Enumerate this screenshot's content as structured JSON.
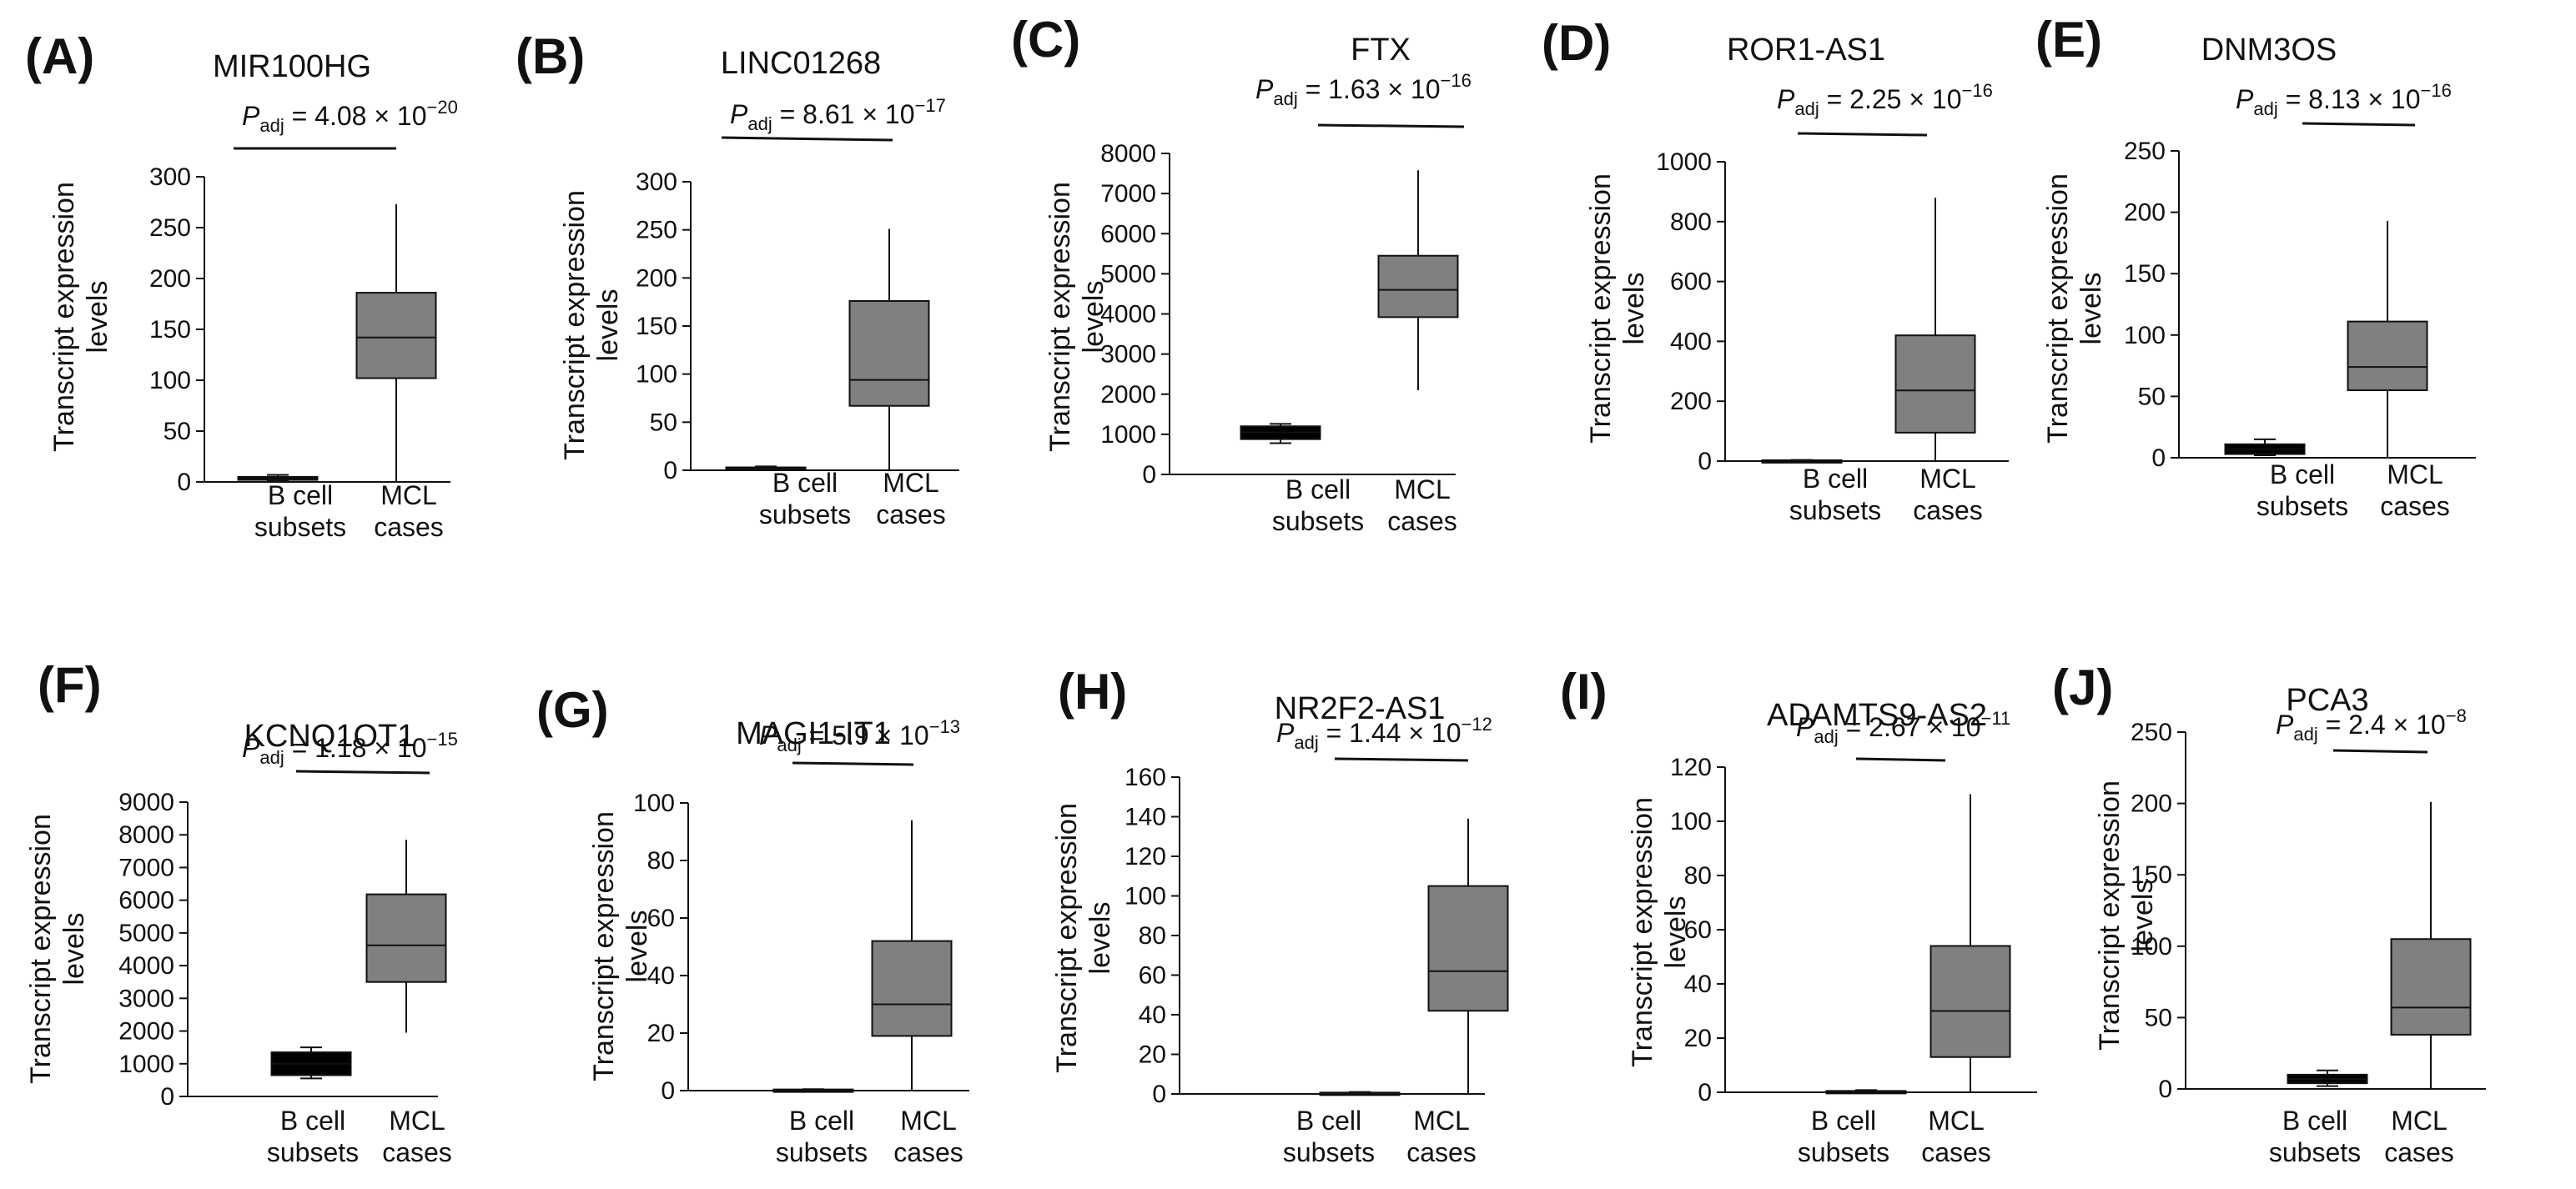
{
  "figure": {
    "colors": {
      "mcl_box": "#808080",
      "bcell_box": "#000000",
      "line": "#111111"
    },
    "category_labels": [
      [
        "B cell",
        "subsets"
      ],
      [
        "MCL",
        "cases"
      ]
    ],
    "ylabel_lines": [
      "Transcript expression",
      "levels"
    ],
    "padj_symbol": "P",
    "padj_subscript": "adj",
    "times_symbol": "×",
    "exp_base": "10"
  },
  "chart_data": [
    {
      "type": "box",
      "panel": "(A)",
      "title": "MIR100HG",
      "p_adj": {
        "mantissa": "4.08",
        "exponent": "−20"
      },
      "ylim": [
        0,
        300
      ],
      "yticks": [
        "0",
        "50",
        "100",
        "150",
        "200",
        "250",
        "300"
      ],
      "categories": [
        "B cell subsets",
        "MCL cases"
      ],
      "series": [
        {
          "name": "B cell subsets",
          "min": 1,
          "q1": 2,
          "median": 3,
          "q3": 5,
          "max": 7
        },
        {
          "name": "MCL cases",
          "min": 0,
          "q1": 102,
          "median": 142,
          "q3": 186,
          "max": 273
        }
      ]
    },
    {
      "type": "box",
      "panel": "(B)",
      "title": "LINC01268",
      "p_adj": {
        "mantissa": "8.61",
        "exponent": "−17"
      },
      "ylim": [
        0,
        300
      ],
      "yticks": [
        "0",
        "50",
        "100",
        "150",
        "200",
        "250",
        "300"
      ],
      "categories": [
        "B cell subsets",
        "MCL cases"
      ],
      "series": [
        {
          "name": "B cell subsets",
          "min": 0,
          "q1": 1,
          "median": 2,
          "q3": 3,
          "max": 4
        },
        {
          "name": "MCL cases",
          "min": 0,
          "q1": 67,
          "median": 94,
          "q3": 176,
          "max": 251
        }
      ]
    },
    {
      "type": "box",
      "panel": "(C)",
      "title": "FTX",
      "p_adj": {
        "mantissa": "1.63",
        "exponent": "−16"
      },
      "ylim": [
        0,
        8000
      ],
      "yticks": [
        "0",
        "1000",
        "2000",
        "3000",
        "4000",
        "5000",
        "6000",
        "7000",
        "8000"
      ],
      "categories": [
        "B cell subsets",
        "MCL cases"
      ],
      "series": [
        {
          "name": "B cell subsets",
          "min": 780,
          "q1": 880,
          "median": 1050,
          "q3": 1200,
          "max": 1260
        },
        {
          "name": "MCL cases",
          "min": 2100,
          "q1": 3920,
          "median": 4600,
          "q3": 5450,
          "max": 7580
        }
      ]
    },
    {
      "type": "box",
      "panel": "(D)",
      "title": "ROR1-AS1",
      "p_adj": {
        "mantissa": "2.25",
        "exponent": "−16"
      },
      "ylim": [
        0,
        1000
      ],
      "yticks": [
        "0",
        "200",
        "400",
        "600",
        "800",
        "1000"
      ],
      "categories": [
        "B cell subsets",
        "MCL cases"
      ],
      "series": [
        {
          "name": "B cell subsets",
          "min": 0,
          "q1": 1,
          "median": 2,
          "q3": 3,
          "max": 4
        },
        {
          "name": "MCL cases",
          "min": 0,
          "q1": 95,
          "median": 236,
          "q3": 420,
          "max": 880
        }
      ]
    },
    {
      "type": "box",
      "panel": "(E)",
      "title": "DNM3OS",
      "p_adj": {
        "mantissa": "8.13",
        "exponent": "−16"
      },
      "ylim": [
        0,
        250
      ],
      "yticks": [
        "0",
        "50",
        "100",
        "150",
        "200",
        "250"
      ],
      "categories": [
        "B cell subsets",
        "MCL cases"
      ],
      "series": [
        {
          "name": "B cell subsets",
          "min": 2,
          "q1": 3,
          "median": 7,
          "q3": 11,
          "max": 15
        },
        {
          "name": "MCL cases",
          "min": 0,
          "q1": 55,
          "median": 74,
          "q3": 111,
          "max": 193
        }
      ]
    },
    {
      "type": "box",
      "panel": "(F)",
      "title": "KCNQ1OT1",
      "p_adj": {
        "mantissa": "1.18",
        "exponent": "−15"
      },
      "ylim": [
        0,
        9000
      ],
      "yticks": [
        "0",
        "1000",
        "2000",
        "3000",
        "4000",
        "5000",
        "6000",
        "7000",
        "8000",
        "9000"
      ],
      "categories": [
        "B cell subsets",
        "MCL cases"
      ],
      "series": [
        {
          "name": "B cell subsets",
          "min": 550,
          "q1": 650,
          "median": 1000,
          "q3": 1350,
          "max": 1500
        },
        {
          "name": "MCL cases",
          "min": 1950,
          "q1": 3500,
          "median": 4620,
          "q3": 6180,
          "max": 7850
        }
      ]
    },
    {
      "type": "box",
      "panel": "(G)",
      "title": "MAGI1-IT1",
      "p_adj": {
        "mantissa": "5.9",
        "exponent": "−13"
      },
      "ylim": [
        0,
        100
      ],
      "yticks": [
        "0",
        "20",
        "40",
        "60",
        "80",
        "100"
      ],
      "categories": [
        "B cell subsets",
        "MCL cases"
      ],
      "series": [
        {
          "name": "B cell subsets",
          "min": 0,
          "q1": 0.1,
          "median": 0.2,
          "q3": 0.4,
          "max": 0.5
        },
        {
          "name": "MCL cases",
          "min": 0,
          "q1": 19,
          "median": 30,
          "q3": 52,
          "max": 94
        }
      ]
    },
    {
      "type": "box",
      "panel": "(H)",
      "title": "NR2F2-AS1",
      "p_adj": {
        "mantissa": "1.44",
        "exponent": "−12"
      },
      "ylim": [
        0,
        160
      ],
      "yticks": [
        "0",
        "20",
        "40",
        "60",
        "80",
        "100",
        "120",
        "140",
        "160"
      ],
      "categories": [
        "B cell subsets",
        "MCL cases"
      ],
      "series": [
        {
          "name": "B cell subsets",
          "min": 0,
          "q1": 0.2,
          "median": 0.4,
          "q3": 0.7,
          "max": 1
        },
        {
          "name": "MCL cases",
          "min": 0,
          "q1": 42,
          "median": 62,
          "q3": 105,
          "max": 139
        }
      ]
    },
    {
      "type": "box",
      "panel": "(I)",
      "title": "ADAMTS9-AS2",
      "p_adj": {
        "mantissa": "2.67",
        "exponent": "−11"
      },
      "ylim": [
        0,
        120
      ],
      "yticks": [
        "0",
        "20",
        "40",
        "60",
        "80",
        "100",
        "120"
      ],
      "categories": [
        "B cell subsets",
        "MCL cases"
      ],
      "series": [
        {
          "name": "B cell subsets",
          "min": 0,
          "q1": 0.1,
          "median": 0.3,
          "q3": 0.5,
          "max": 0.8
        },
        {
          "name": "MCL cases",
          "min": 0,
          "q1": 13,
          "median": 30,
          "q3": 54,
          "max": 110
        }
      ]
    },
    {
      "type": "box",
      "panel": "(J)",
      "title": "PCA3",
      "p_adj": {
        "mantissa": "2.4",
        "exponent": "−8"
      },
      "ylim": [
        0,
        250
      ],
      "yticks": [
        "0",
        "50",
        "100",
        "150",
        "200",
        "250"
      ],
      "categories": [
        "B cell subsets",
        "MCL cases"
      ],
      "series": [
        {
          "name": "B cell subsets",
          "min": 2,
          "q1": 4,
          "median": 7,
          "q3": 10,
          "max": 13
        },
        {
          "name": "MCL cases",
          "min": 0,
          "q1": 38,
          "median": 57,
          "q3": 105,
          "max": 201
        }
      ]
    }
  ]
}
